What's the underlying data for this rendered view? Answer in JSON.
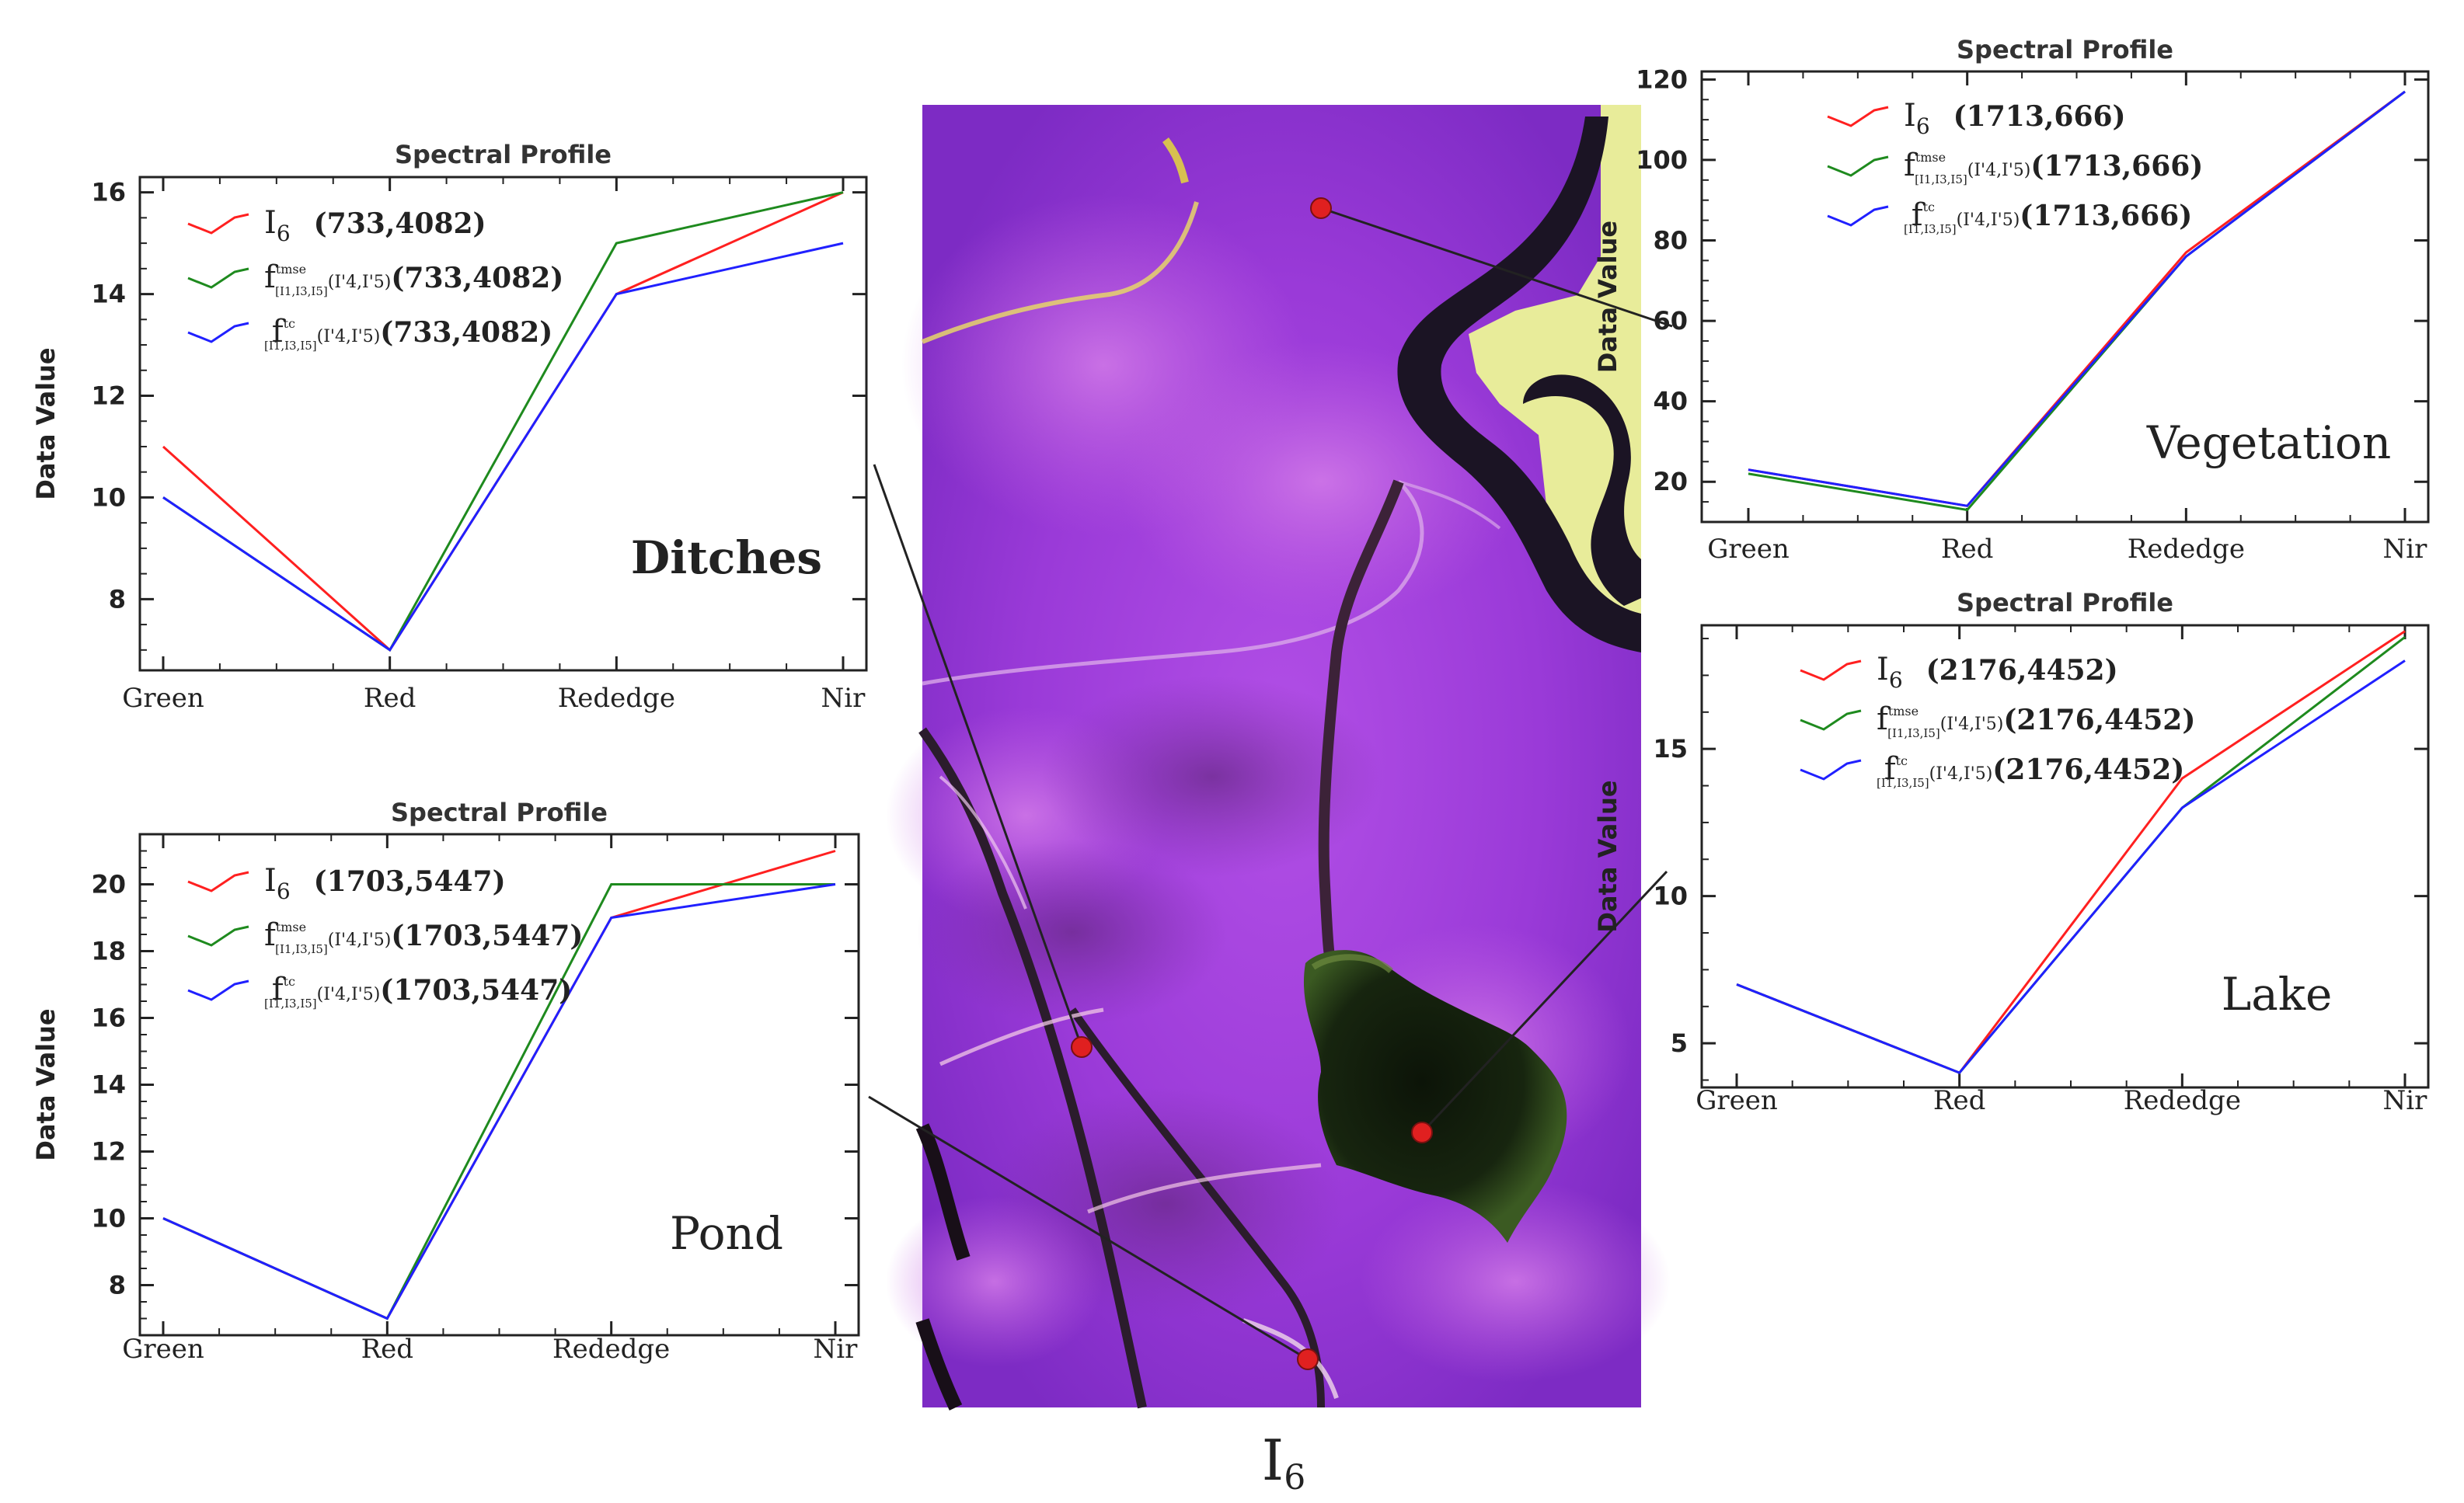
{
  "figure": {
    "image_label": "I",
    "image_label_sub": "6",
    "background_color": "#ffffff"
  },
  "colors": {
    "red": "#ff2020",
    "green": "#1e8a1e",
    "blue": "#2020ff",
    "leader": "#222222",
    "marker": "#e02020"
  },
  "chart_data": [
    {
      "id": "ditches",
      "type": "line",
      "title": "Spectral Profile",
      "ylabel": "Data Value",
      "xlabel": "",
      "class_label": "Ditches",
      "class_label_bold": true,
      "categories": [
        "Green",
        "Red",
        "Rededge",
        "Nir"
      ],
      "ylim": [
        6.6,
        16.3
      ],
      "yticks": [
        8,
        10,
        12,
        14,
        16
      ],
      "series": [
        {
          "name": "I6",
          "legend": "I",
          "legend_sub": "6",
          "coord": "(733,4082)",
          "color": "#ff2020",
          "values": [
            11,
            7,
            14,
            16
          ]
        },
        {
          "name": "fmse",
          "legend": "f",
          "legend_sup": "tmse",
          "legend_sub": "[I1,I3,I5]",
          "legend_tail": "(I'4,I'5)",
          "coord": "(733,4082)",
          "color": "#1e8a1e",
          "values": [
            10,
            7,
            15,
            16
          ]
        },
        {
          "name": "fc",
          "legend": "f",
          "legend_sup": "tc",
          "legend_sub": "[I1,I3,I5]",
          "legend_tail": "(I'4,I'5)",
          "coord": "(733,4082)",
          "color": "#2020ff",
          "values": [
            10,
            7,
            14,
            15
          ]
        }
      ]
    },
    {
      "id": "pond",
      "type": "line",
      "title": "Spectral Profile",
      "ylabel": "Data Value",
      "xlabel": "",
      "class_label": "Pond",
      "class_label_bold": false,
      "categories": [
        "Green",
        "Red",
        "Rededge",
        "Nir"
      ],
      "ylim": [
        6.5,
        21.5
      ],
      "yticks": [
        8,
        10,
        12,
        14,
        16,
        18,
        20
      ],
      "series": [
        {
          "name": "I6",
          "legend": "I",
          "legend_sub": "6",
          "coord": "(1703,5447)",
          "color": "#ff2020",
          "values": [
            10,
            7,
            19,
            21
          ]
        },
        {
          "name": "fmse",
          "legend": "f",
          "legend_sup": "tmse",
          "legend_sub": "[I1,I3,I5]",
          "legend_tail": "(I'4,I'5)",
          "coord": "(1703,5447)",
          "color": "#1e8a1e",
          "values": [
            10,
            7,
            20,
            20
          ]
        },
        {
          "name": "fc",
          "legend": "f",
          "legend_sup": "tc",
          "legend_sub": "[I1,I3,I5]",
          "legend_tail": "(I'4,I'5)",
          "coord": "(1703,5447)",
          "color": "#2020ff",
          "values": [
            10,
            7,
            19,
            20
          ]
        }
      ]
    },
    {
      "id": "vegetation",
      "type": "line",
      "title": "Spectral Profile",
      "ylabel": "Data Value",
      "xlabel": "",
      "class_label": "Vegetation",
      "class_label_bold": false,
      "categories": [
        "Green",
        "Red",
        "Rededge",
        "Nir"
      ],
      "ylim": [
        10,
        122
      ],
      "yticks": [
        20,
        40,
        60,
        80,
        100,
        120
      ],
      "series": [
        {
          "name": "I6",
          "legend": "I",
          "legend_sub": "6",
          "coord": "(1713,666)",
          "color": "#ff2020",
          "values": [
            23,
            14,
            77,
            117
          ]
        },
        {
          "name": "fmse",
          "legend": "f",
          "legend_sup": "tmse",
          "legend_sub": "[I1,I3,I5]",
          "legend_tail": "(I'4,I'5)",
          "coord": "(1713,666)",
          "color": "#1e8a1e",
          "values": [
            22,
            13,
            76,
            117
          ]
        },
        {
          "name": "fc",
          "legend": "f",
          "legend_sup": "tc",
          "legend_sub": "[I1,I3,I5]",
          "legend_tail": "(I'4,I'5)",
          "coord": "(1713,666)",
          "color": "#2020ff",
          "values": [
            23,
            14,
            76,
            117
          ]
        }
      ]
    },
    {
      "id": "lake",
      "type": "line",
      "title": "Spectral Profile",
      "ylabel": "Data Value",
      "xlabel": "",
      "class_label": "Lake",
      "class_label_bold": false,
      "categories": [
        "Green",
        "Red",
        "Rededge",
        "Nir"
      ],
      "ylim": [
        3.5,
        19.2
      ],
      "yticks": [
        5,
        10,
        15
      ],
      "series": [
        {
          "name": "I6",
          "legend": "I",
          "legend_sub": "6",
          "coord": "(2176,4452)",
          "color": "#ff2020",
          "values": [
            7,
            4,
            14,
            19
          ]
        },
        {
          "name": "fmse",
          "legend": "f",
          "legend_sup": "tmse",
          "legend_sub": "[I1,I3,I5]",
          "legend_tail": "(I'4,I'5)",
          "coord": "(2176,4452)",
          "color": "#1e8a1e",
          "values": [
            7,
            4,
            13,
            18.8
          ]
        },
        {
          "name": "fc",
          "legend": "f",
          "legend_sup": "tc",
          "legend_sub": "[I1,I3,I5]",
          "legend_tail": "(I'4,I'5)",
          "coord": "(2176,4452)",
          "color": "#2020ff",
          "values": [
            7,
            4,
            13,
            18
          ]
        }
      ]
    }
  ]
}
